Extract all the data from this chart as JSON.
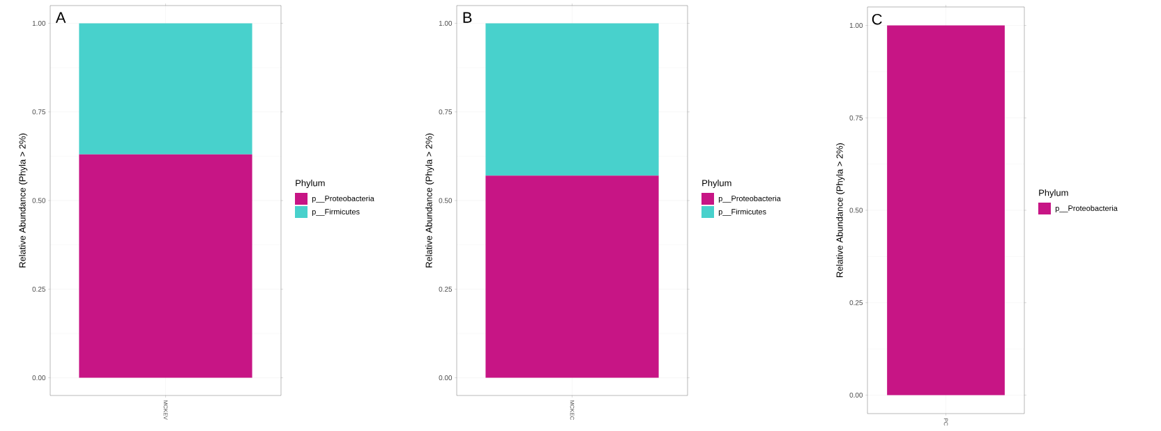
{
  "chart_data": [
    {
      "type": "bar",
      "stacked": true,
      "categories": [
        "MCKEV"
      ],
      "ylabel": "Relative Abundance (Phyla > 2%)",
      "ylim": [
        -0.05,
        1.05
      ],
      "yticks": [
        {
          "value": 0,
          "label": "0.00"
        },
        {
          "value": 0.25,
          "label": "0.25"
        },
        {
          "value": 0.5,
          "label": "0.50"
        },
        {
          "value": 0.75,
          "label": "0.75"
        },
        {
          "value": 1,
          "label": "1.00"
        }
      ],
      "grid": true,
      "legend": "right",
      "legend_title": "Phylum",
      "annotations": [
        "A"
      ],
      "series": [
        {
          "name": "p__Proteobacteria",
          "color": "#c71585",
          "values": [
            0.63
          ]
        },
        {
          "name": "p__Firmicutes",
          "color": "#48d1cc",
          "values": [
            0.37
          ]
        }
      ]
    },
    {
      "type": "bar",
      "stacked": true,
      "categories": [
        "MCKEC"
      ],
      "ylabel": "Relative Abundance (Phyla > 2%)",
      "ylim": [
        -0.05,
        1.05
      ],
      "yticks": [
        {
          "value": 0,
          "label": "0.00"
        },
        {
          "value": 0.25,
          "label": "0.25"
        },
        {
          "value": 0.5,
          "label": "0.50"
        },
        {
          "value": 0.75,
          "label": "0.75"
        },
        {
          "value": 1,
          "label": "1.00"
        }
      ],
      "grid": true,
      "legend": "right",
      "legend_title": "Phylum",
      "annotations": [
        "B"
      ],
      "series": [
        {
          "name": "p__Proteobacteria",
          "color": "#c71585",
          "values": [
            0.57
          ]
        },
        {
          "name": "p__Firmicutes",
          "color": "#48d1cc",
          "values": [
            0.43
          ]
        }
      ]
    },
    {
      "type": "bar",
      "stacked": true,
      "categories": [
        "PC"
      ],
      "ylabel": "Relative Abundance (Phyla > 2%)",
      "ylim": [
        -0.05,
        1.05
      ],
      "yticks": [
        {
          "value": 0,
          "label": "0.00"
        },
        {
          "value": 0.25,
          "label": "0.25"
        },
        {
          "value": 0.5,
          "label": "0.50"
        },
        {
          "value": 0.75,
          "label": "0.75"
        },
        {
          "value": 1,
          "label": "1.00"
        }
      ],
      "grid": true,
      "legend": "right",
      "legend_title": "Phylum",
      "annotations": [
        "C"
      ],
      "series": [
        {
          "name": "p__Proteobacteria",
          "color": "#c71585",
          "values": [
            1.0
          ]
        }
      ]
    }
  ]
}
